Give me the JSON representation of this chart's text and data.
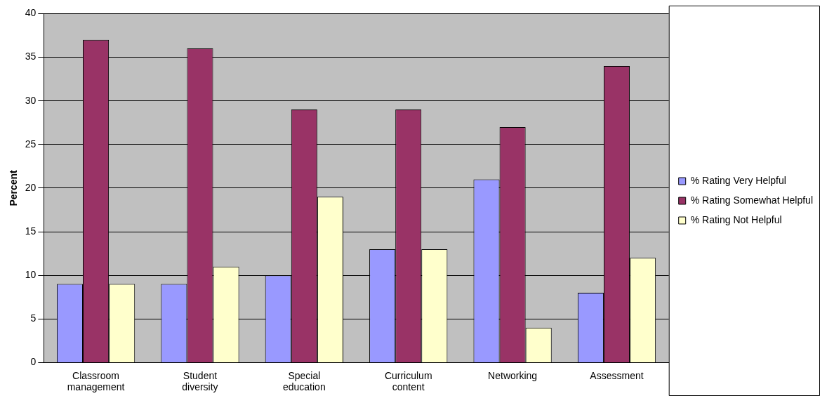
{
  "chart_data": {
    "type": "bar",
    "ylabel": "Percent",
    "categories": [
      "Classroom management",
      "Student diversity",
      "Special education",
      "Curriculum content",
      "Networking",
      "Assessment"
    ],
    "series": [
      {
        "name": "% Rating Very Helpful",
        "color": "#9999ff",
        "values": [
          9,
          9,
          10,
          13,
          21,
          8
        ]
      },
      {
        "name": "% Rating Somewhat Helpful",
        "color": "#993366",
        "values": [
          37,
          36,
          29,
          29,
          27,
          34
        ]
      },
      {
        "name": "% Rating Not Helpful",
        "color": "#ffffcc",
        "values": [
          9,
          11,
          19,
          13,
          4,
          12
        ]
      }
    ],
    "ylim": [
      0,
      40
    ],
    "yticks": [
      0,
      5,
      10,
      15,
      20,
      25,
      30,
      35,
      40
    ],
    "grid": "y",
    "legend": "right"
  }
}
